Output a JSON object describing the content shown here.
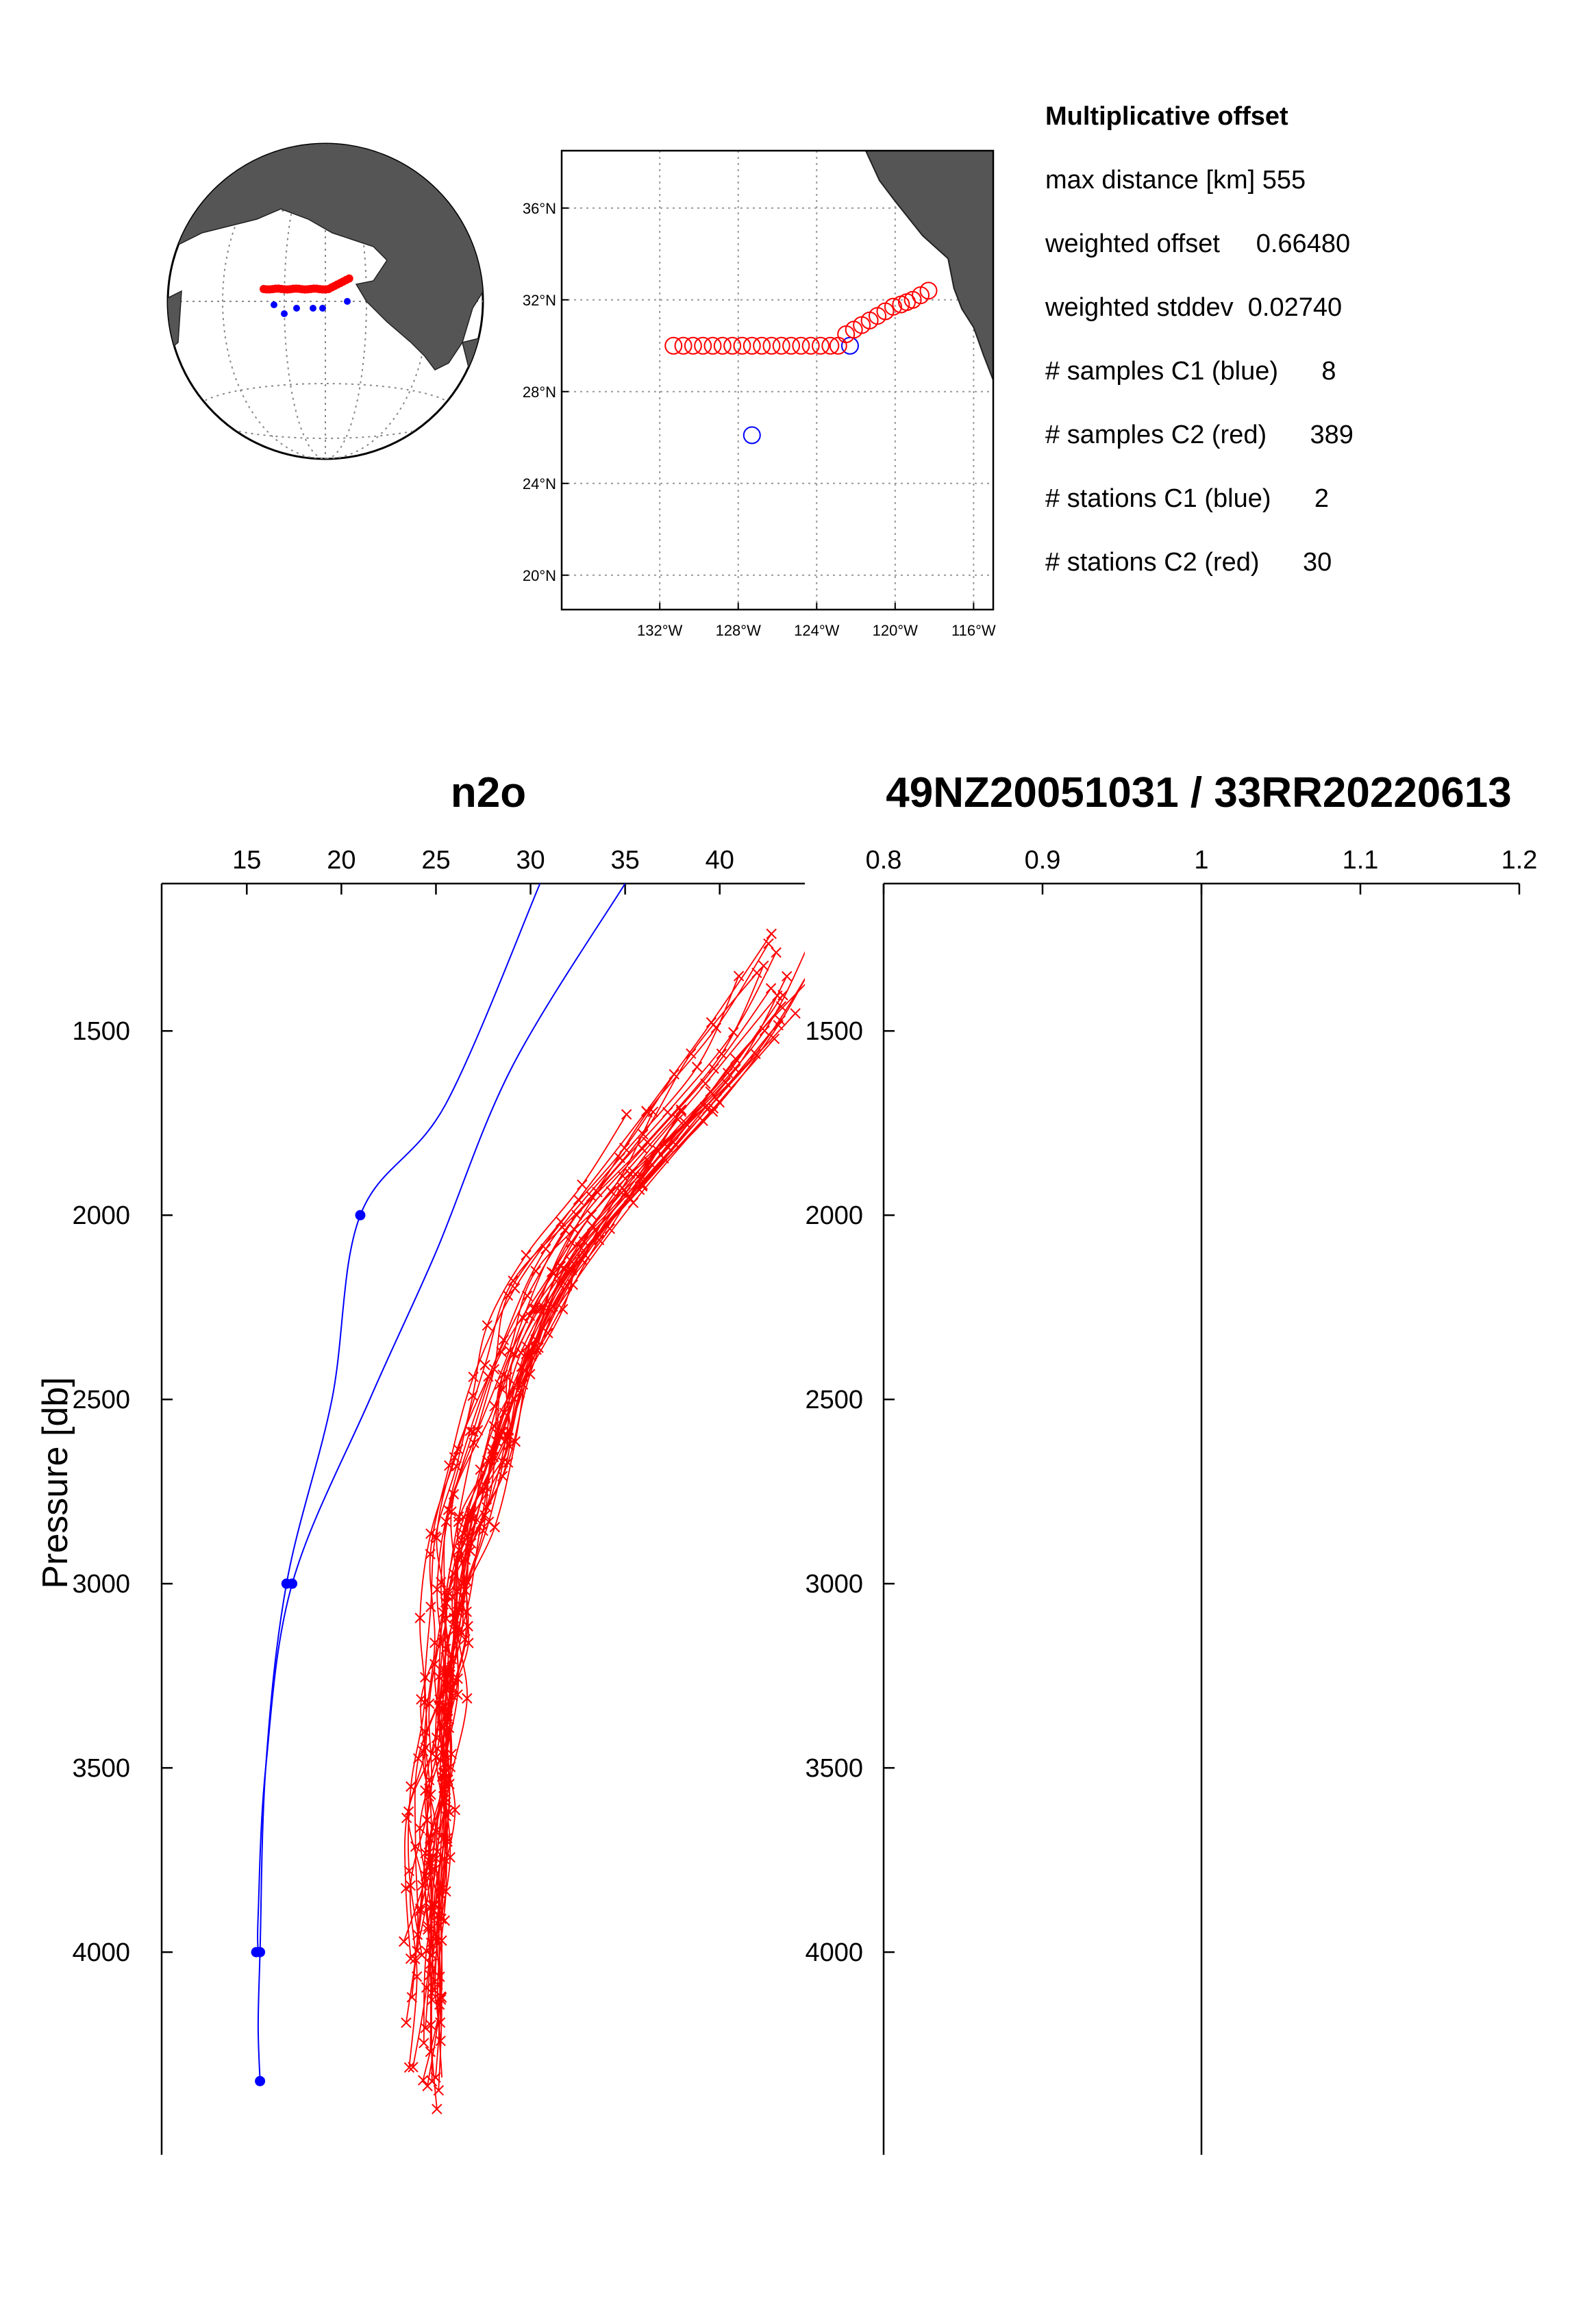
{
  "summary": {
    "heading": "Multiplicative offset",
    "lines": [
      {
        "label": "max distance [km]",
        "value": "555"
      },
      {
        "label": "weighted offset",
        "value": "0.66480"
      },
      {
        "label": "weighted stddev",
        "value": "0.02740"
      },
      {
        "label": "# samples C1 (blue)",
        "value": "8"
      },
      {
        "label": "# samples C2 (red)",
        "value": "389"
      },
      {
        "label": "# stations C1 (blue)",
        "value": "2"
      },
      {
        "label": "# stations C2 (red)",
        "value": "30"
      }
    ]
  },
  "colors": {
    "c1": "#0000ff",
    "c2": "#ff0000",
    "land": "#555555"
  },
  "chart_data": [
    {
      "type": "map",
      "projection": "orthographic globe",
      "c1_stations_markers": "blue dots",
      "c2_stations_markers": "red dots (dense track)"
    },
    {
      "type": "scatter",
      "xlim": [
        -137,
        -115
      ],
      "ylim": [
        18.5,
        38.5
      ],
      "xticks": [
        "132°W",
        "128°W",
        "124°W",
        "120°W",
        "116°W"
      ],
      "yticks": [
        "20°N",
        "24°N",
        "28°N",
        "32°N",
        "36°N"
      ],
      "grid": true,
      "series": [
        {
          "marker": "circle-blue",
          "lon": [
            -127.3,
            -122.3
          ],
          "lat": [
            26.1,
            30.0
          ]
        },
        {
          "marker": "circle-red",
          "lon": [
            -131.3,
            -130.8,
            -130.3,
            -129.8,
            -129.3,
            -128.8,
            -128.3,
            -127.8,
            -127.3,
            -126.8,
            -126.3,
            -125.8,
            -125.3,
            -124.8,
            -124.3,
            -123.8,
            -123.3,
            -122.9,
            -122.5,
            -122.1,
            -121.7,
            -121.3,
            -120.9,
            -120.5,
            -120.1,
            -119.7,
            -119.4,
            -119.1,
            -118.7,
            -118.3
          ],
          "lat": [
            30.0,
            30.0,
            30.0,
            30.0,
            30.0,
            30.0,
            30.0,
            30.0,
            30.0,
            30.0,
            30.0,
            30.0,
            30.0,
            30.0,
            30.0,
            30.0,
            30.0,
            30.0,
            30.5,
            30.7,
            30.9,
            31.1,
            31.3,
            31.5,
            31.7,
            31.8,
            31.9,
            32.0,
            32.2,
            32.4
          ]
        }
      ]
    },
    {
      "type": "line",
      "title": "n2o",
      "ylabel": "Pressure  [db]",
      "xlim": [
        10.5,
        44.5
      ],
      "ylim": [
        1100,
        4550
      ],
      "y_reversed": true,
      "xticks": [
        15,
        20,
        25,
        30,
        35,
        40
      ],
      "yticks": [
        1500,
        2000,
        2500,
        3000,
        3500,
        4000
      ],
      "c1_profiles": [
        {
          "x": [
            30.5,
            25.5,
            21.0,
            19.5,
            17.1,
            16.0,
            15.7,
            15.6,
            15.7
          ],
          "y": [
            1100,
            1700,
            2000,
            2500,
            3000,
            3500,
            4000,
            4200,
            4350
          ]
        },
        {
          "x": [
            35.0,
            29.0,
            25.0,
            21.5,
            17.4,
            16.0,
            15.6,
            15.6
          ],
          "y": [
            1100,
            1600,
            2100,
            2500,
            3000,
            3500,
            3900,
            4000
          ]
        }
      ],
      "c1_points": {
        "x": [
          21.0,
          17.1,
          17.4,
          15.5,
          15.7,
          15.7
        ],
        "y": [
          2000,
          3000,
          3000,
          4000,
          4000,
          4350
        ]
      },
      "c2_mean_profile": {
        "x": [
          44.0,
          41.0,
          37.0,
          34.5,
          31.5,
          29.5,
          28.0,
          27.0,
          26.0,
          25.5,
          25.0,
          24.6,
          24.3,
          24.2
        ],
        "y": [
          1250,
          1500,
          1750,
          1900,
          2100,
          2300,
          2500,
          2700,
          2900,
          3100,
          3400,
          3700,
          4000,
          4300
        ]
      },
      "c2_sample_count": 389,
      "c2_stations": 30
    },
    {
      "type": "line",
      "title": "49NZ20051031 / 33RR20220613",
      "xlim": [
        0.8,
        1.2
      ],
      "ylim": [
        1100,
        4550
      ],
      "y_reversed": true,
      "xticks": [
        "0.8",
        "0.9",
        "1",
        "1.1",
        "1.2"
      ],
      "yticks": [
        1500,
        2000,
        2500,
        3000,
        3500,
        4000
      ],
      "reference_line_x": 1
    }
  ]
}
